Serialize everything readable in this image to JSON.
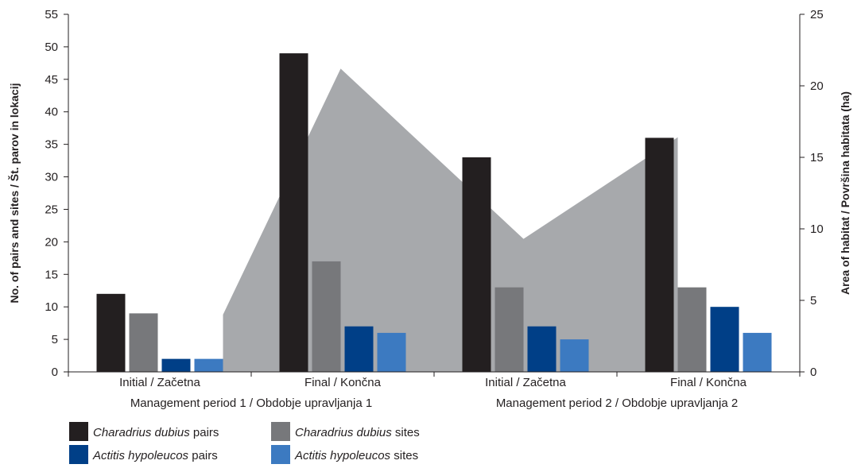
{
  "chart_data": {
    "type": "bar",
    "title": "",
    "groups": [
      {
        "label": "Initial / Začetna",
        "period": "Management period 1 / Obdobje upravljanja 1"
      },
      {
        "label": "Final / Končna",
        "period": "Management period 1 / Obdobje upravljanja 1"
      },
      {
        "label": "Initial / Začetna",
        "period": "Management period 2 / Obdobje upravljanja 2"
      },
      {
        "label": "Final / Končna",
        "period": "Management period 2 / Obdobje upravljanja 2"
      }
    ],
    "periods": [
      "Management period 1 / Obdobje upravljanja 1",
      "Management period 2 / Obdobje upravljanja 2"
    ],
    "ylabel_left": "No. of pairs and sites / Št. parov in lokacij",
    "ylabel_right": "Area of habitat / Površina habitata (ha)",
    "ylim_left": [
      0,
      55
    ],
    "ylim_right": [
      0,
      25
    ],
    "yticks_left": [
      "0",
      "5",
      "10",
      "15",
      "20",
      "25",
      "30",
      "35",
      "40",
      "45",
      "50",
      "55"
    ],
    "yticks_right": [
      "0",
      "5",
      "10",
      "15",
      "20",
      "25"
    ],
    "series": [
      {
        "species": "Charadrius dubius",
        "metric": "pairs",
        "color": "#231f20",
        "values": [
          12,
          49,
          33,
          36
        ]
      },
      {
        "species": "Charadrius dubius",
        "metric": "sites",
        "color": "#77787b",
        "values": [
          9,
          17,
          13,
          13
        ]
      },
      {
        "species": "Actitis hypoleucos",
        "metric": "pairs",
        "color": "#003f87",
        "values": [
          2,
          7,
          7,
          10
        ]
      },
      {
        "species": "Actitis hypoleucos",
        "metric": "sites",
        "color": "#3c7ac1",
        "values": [
          2,
          6,
          5,
          6
        ]
      }
    ],
    "area_series": {
      "axis": "right",
      "color": "#a7a9ac",
      "values": [
        4,
        21.2,
        9.3,
        16.4
      ]
    },
    "legend_position": "bottom-left",
    "grid": false
  }
}
